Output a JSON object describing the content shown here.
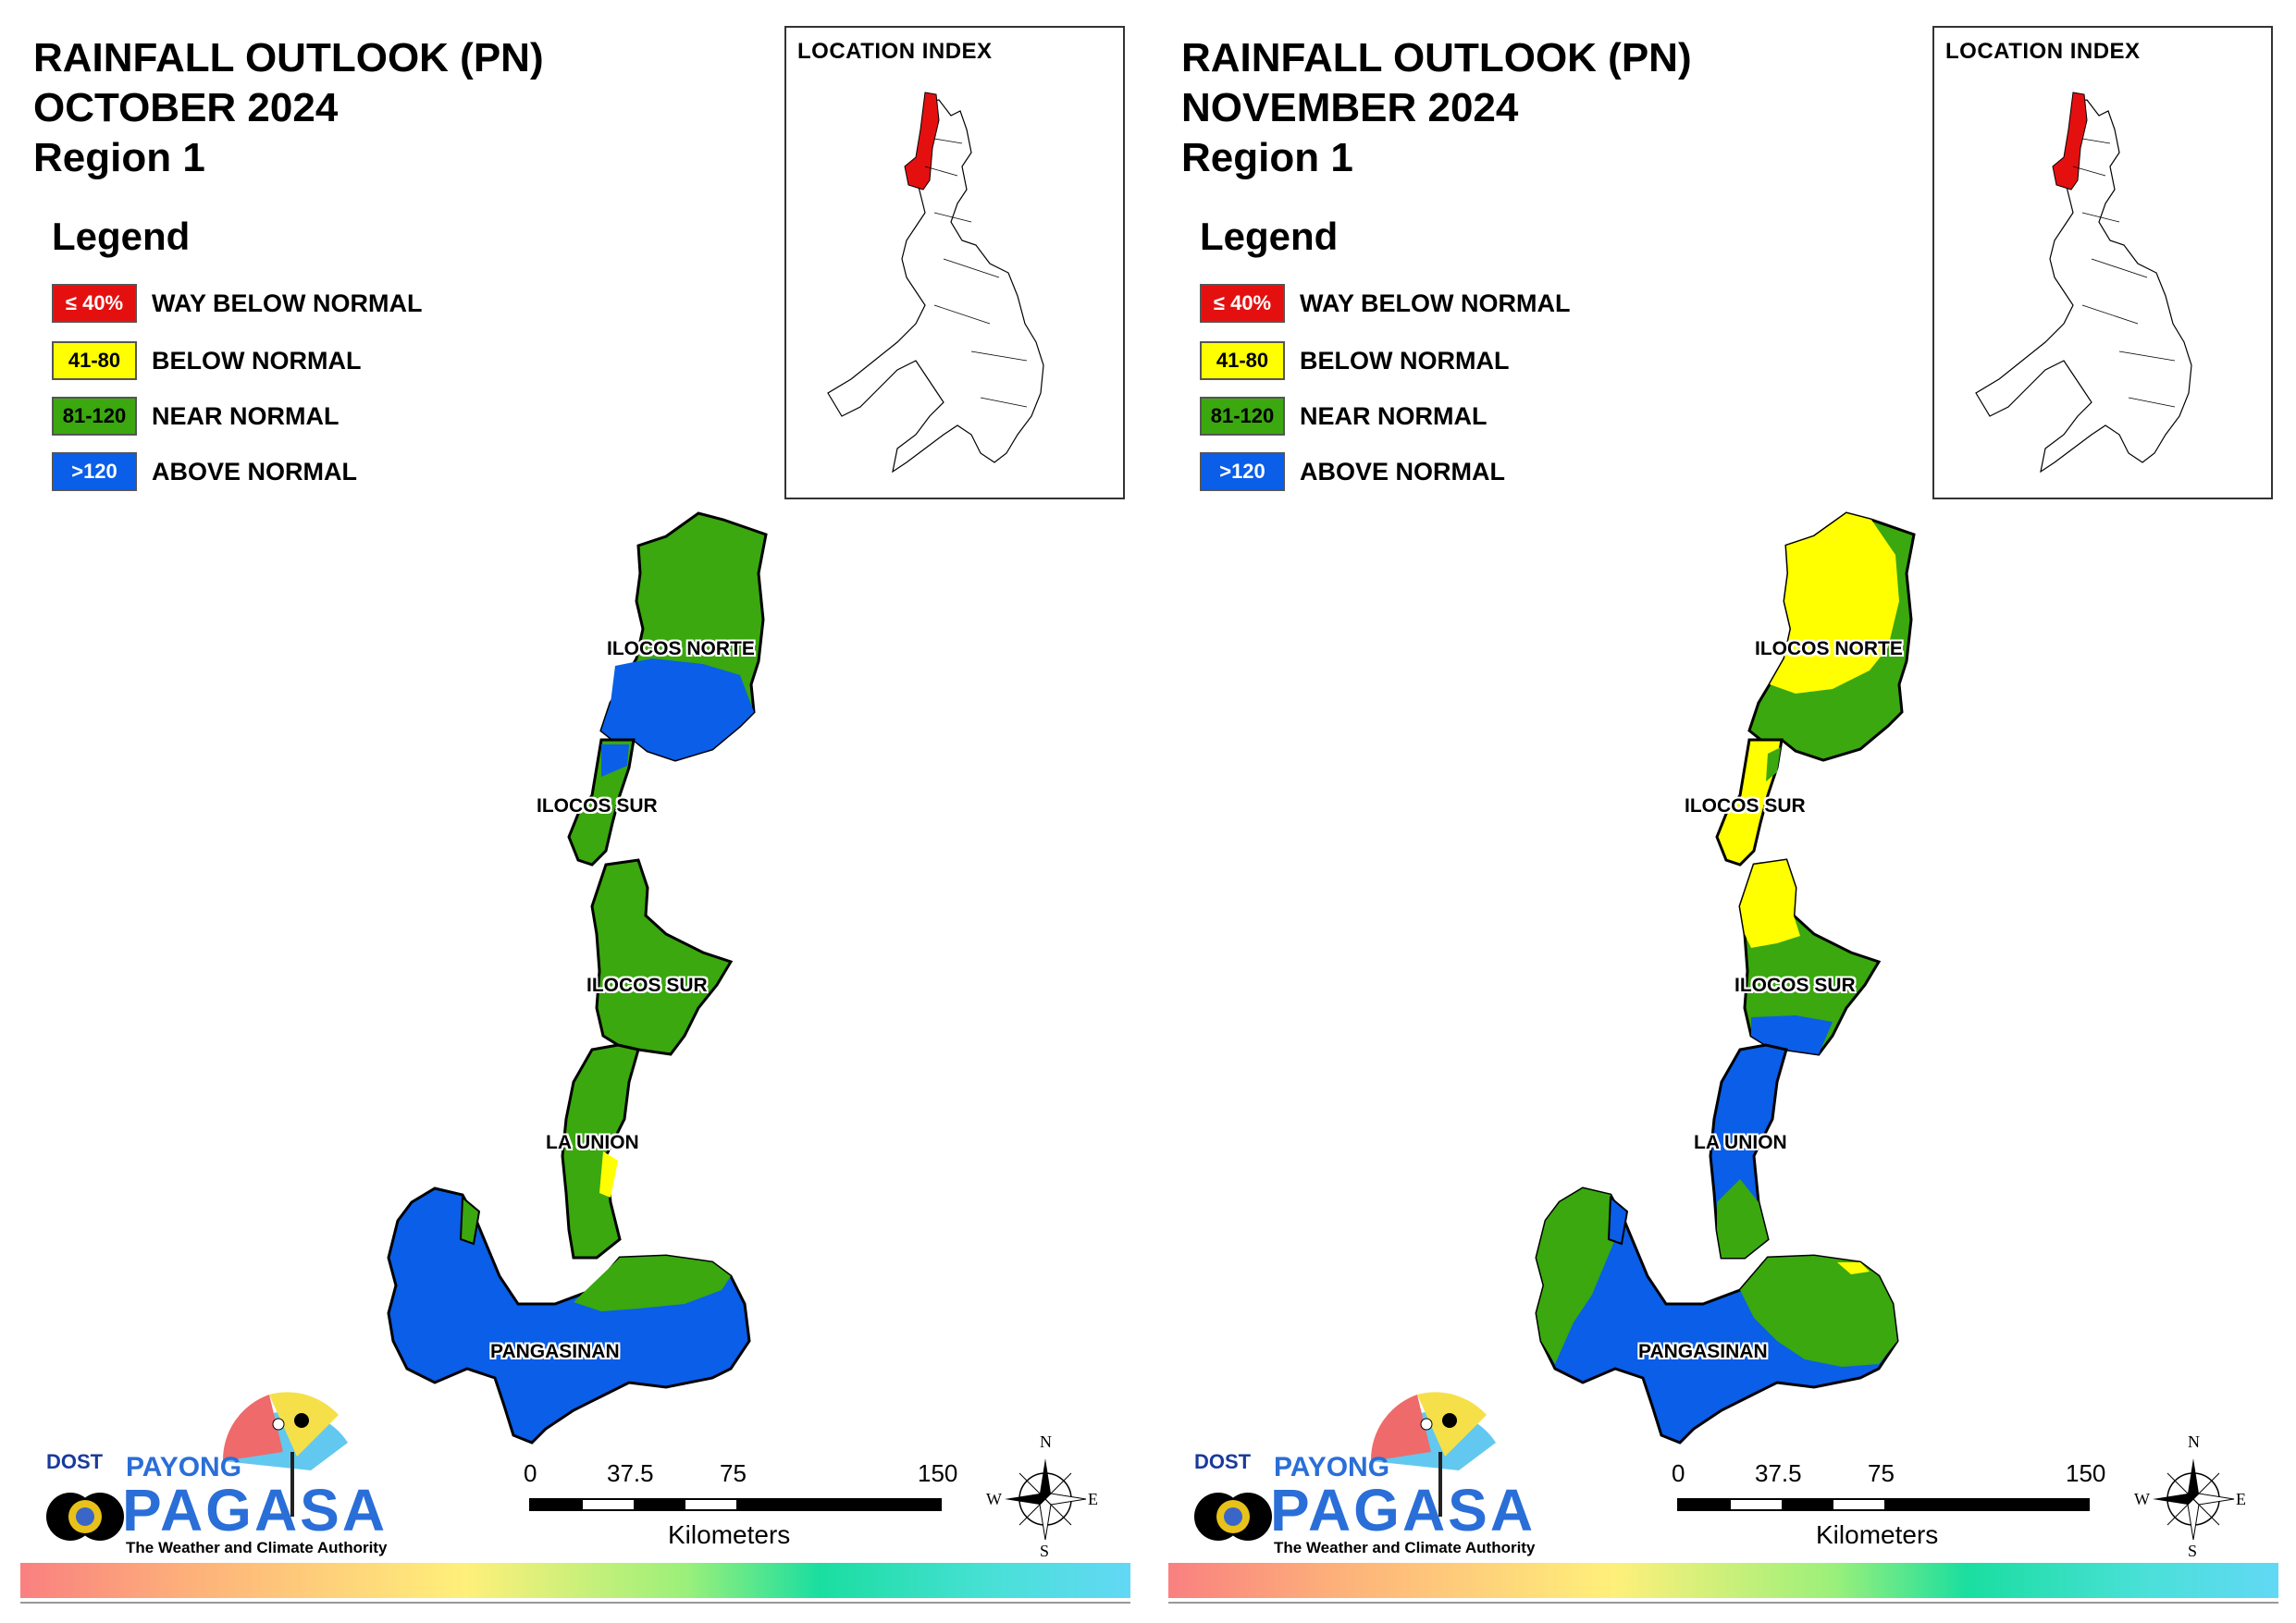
{
  "panels": [
    {
      "title_line1": "RAINFALL OUTLOOK (PN)",
      "title_line2": "OCTOBER 2024",
      "title_line3": "Region 1",
      "legend_title": "Legend",
      "legend": [
        {
          "swatch": "≤ 40%",
          "label": "WAY BELOW NORMAL",
          "color": "#e41010",
          "text_color": "#ffffff"
        },
        {
          "swatch": "41-80",
          "label": "BELOW NORMAL",
          "color": "#ffff00",
          "text_color": "#000000"
        },
        {
          "swatch": "81-120",
          "label": "NEAR NORMAL",
          "color": "#3aa80e",
          "text_color": "#000000"
        },
        {
          "swatch": ">120",
          "label": "ABOVE NORMAL",
          "color": "#0a5ee8",
          "text_color": "#ffffff"
        }
      ],
      "inset_title": "LOCATION INDEX",
      "provinces": [
        "ILOCOS NORTE",
        "ILOCOS SUR",
        "ILOCOS SUR",
        "LA UNION",
        "PANGASINAN"
      ],
      "scale": {
        "ticks": [
          "0",
          "37.5",
          "75",
          "150"
        ],
        "unit": "Kilometers"
      },
      "compass": {
        "n": "N",
        "e": "E",
        "s": "S",
        "w": "W"
      },
      "logo": {
        "dost": "DOST",
        "payong": "PAYONG",
        "pagasa": "PAGASA",
        "tagline": "The Weather and Climate Authority"
      }
    },
    {
      "title_line1": "RAINFALL OUTLOOK (PN)",
      "title_line2": "NOVEMBER 2024",
      "title_line3": "Region 1",
      "legend_title": "Legend",
      "legend": [
        {
          "swatch": "≤ 40%",
          "label": "WAY BELOW NORMAL",
          "color": "#e41010",
          "text_color": "#ffffff"
        },
        {
          "swatch": "41-80",
          "label": "BELOW NORMAL",
          "color": "#ffff00",
          "text_color": "#000000"
        },
        {
          "swatch": "81-120",
          "label": "NEAR NORMAL",
          "color": "#3aa80e",
          "text_color": "#000000"
        },
        {
          "swatch": ">120",
          "label": "ABOVE NORMAL",
          "color": "#0a5ee8",
          "text_color": "#ffffff"
        }
      ],
      "inset_title": "LOCATION INDEX",
      "provinces": [
        "ILOCOS NORTE",
        "ILOCOS SUR",
        "ILOCOS SUR",
        "LA UNION",
        "PANGASINAN"
      ],
      "scale": {
        "ticks": [
          "0",
          "37.5",
          "75",
          "150"
        ],
        "unit": "Kilometers"
      },
      "compass": {
        "n": "N",
        "e": "E",
        "s": "S",
        "w": "W"
      },
      "logo": {
        "dost": "DOST",
        "payong": "PAYONG",
        "pagasa": "PAGASA",
        "tagline": "The Weather and Climate Authority"
      }
    }
  ]
}
